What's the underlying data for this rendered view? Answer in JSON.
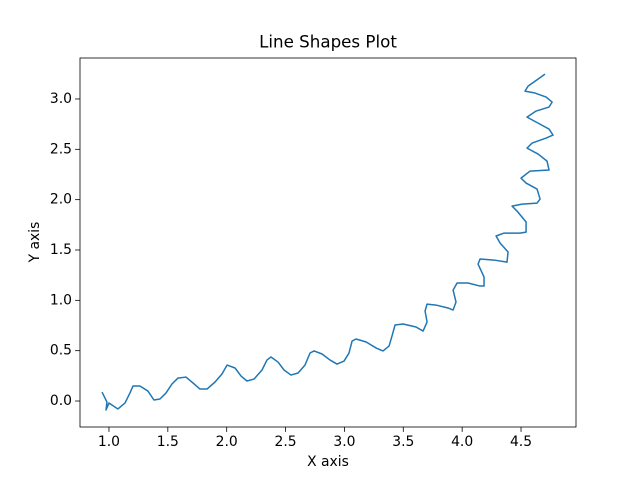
{
  "chart_data": {
    "type": "line",
    "title": "Line Shapes Plot",
    "xlabel": "X axis",
    "ylabel": "Y axis",
    "color": "#1f77b4",
    "xlim": [
      0.754,
      4.967
    ],
    "ylim": [
      -0.258,
      3.407
    ],
    "xticks": [
      {
        "value": 1,
        "label": "1.0"
      },
      1.5,
      {
        "value": 2,
        "label": "2.0"
      },
      2.5,
      {
        "value": 3,
        "label": "3.0"
      },
      3.5,
      {
        "value": 4,
        "label": "4.0"
      },
      4.5
    ],
    "yticks": [
      {
        "value": 0,
        "label": "0.0"
      },
      0.5,
      {
        "value": 1,
        "label": "1.0"
      },
      1.5,
      {
        "value": 2,
        "label": "2.0"
      },
      2.5,
      {
        "value": 3,
        "label": "3.0"
      }
    ],
    "x": [
      0.941,
      0.983,
      0.975,
      1.0,
      1.076,
      1.136,
      1.178,
      1.204,
      1.263,
      1.331,
      1.382,
      1.433,
      1.484,
      1.535,
      1.586,
      1.654,
      1.714,
      1.773,
      1.833,
      1.901,
      1.96,
      2.003,
      2.071,
      2.122,
      2.172,
      2.232,
      2.3,
      2.342,
      2.376,
      2.436,
      2.487,
      2.546,
      2.606,
      2.665,
      2.708,
      2.742,
      2.81,
      2.878,
      2.937,
      2.997,
      3.039,
      3.065,
      3.099,
      3.185,
      3.27,
      3.328,
      3.379,
      3.404,
      3.43,
      3.498,
      3.608,
      3.668,
      3.702,
      3.685,
      3.702,
      3.778,
      3.88,
      3.923,
      3.948,
      3.923,
      3.957,
      4.05,
      4.152,
      4.186,
      4.186,
      4.135,
      4.152,
      4.271,
      4.381,
      4.39,
      4.322,
      4.288,
      4.356,
      4.492,
      4.543,
      4.543,
      4.466,
      4.424,
      4.509,
      4.636,
      4.662,
      4.636,
      4.543,
      4.5,
      4.577,
      4.738,
      4.721,
      4.645,
      4.551,
      4.594,
      4.713,
      4.772,
      4.738,
      4.645,
      4.551,
      4.628,
      4.738,
      4.764,
      4.713,
      4.619,
      4.534,
      4.56,
      4.704
    ],
    "values": [
      0.089,
      -0.01,
      -0.089,
      -0.02,
      -0.079,
      -0.02,
      0.079,
      0.149,
      0.149,
      0.099,
      0.01,
      0.02,
      0.079,
      0.169,
      0.228,
      0.238,
      0.179,
      0.119,
      0.119,
      0.189,
      0.268,
      0.357,
      0.328,
      0.248,
      0.199,
      0.218,
      0.308,
      0.407,
      0.437,
      0.387,
      0.308,
      0.258,
      0.278,
      0.357,
      0.477,
      0.497,
      0.467,
      0.407,
      0.367,
      0.397,
      0.477,
      0.596,
      0.616,
      0.586,
      0.526,
      0.497,
      0.546,
      0.645,
      0.755,
      0.765,
      0.735,
      0.695,
      0.785,
      0.894,
      0.963,
      0.953,
      0.924,
      0.904,
      0.983,
      1.102,
      1.172,
      1.172,
      1.142,
      1.142,
      1.231,
      1.36,
      1.41,
      1.4,
      1.38,
      1.48,
      1.569,
      1.639,
      1.668,
      1.668,
      1.678,
      1.778,
      1.887,
      1.936,
      1.956,
      1.966,
      2.006,
      2.105,
      2.165,
      2.214,
      2.284,
      2.294,
      2.383,
      2.453,
      2.512,
      2.562,
      2.612,
      2.641,
      2.701,
      2.76,
      2.82,
      2.88,
      2.92,
      2.969,
      3.019,
      3.059,
      3.078,
      3.128,
      3.247
    ]
  }
}
